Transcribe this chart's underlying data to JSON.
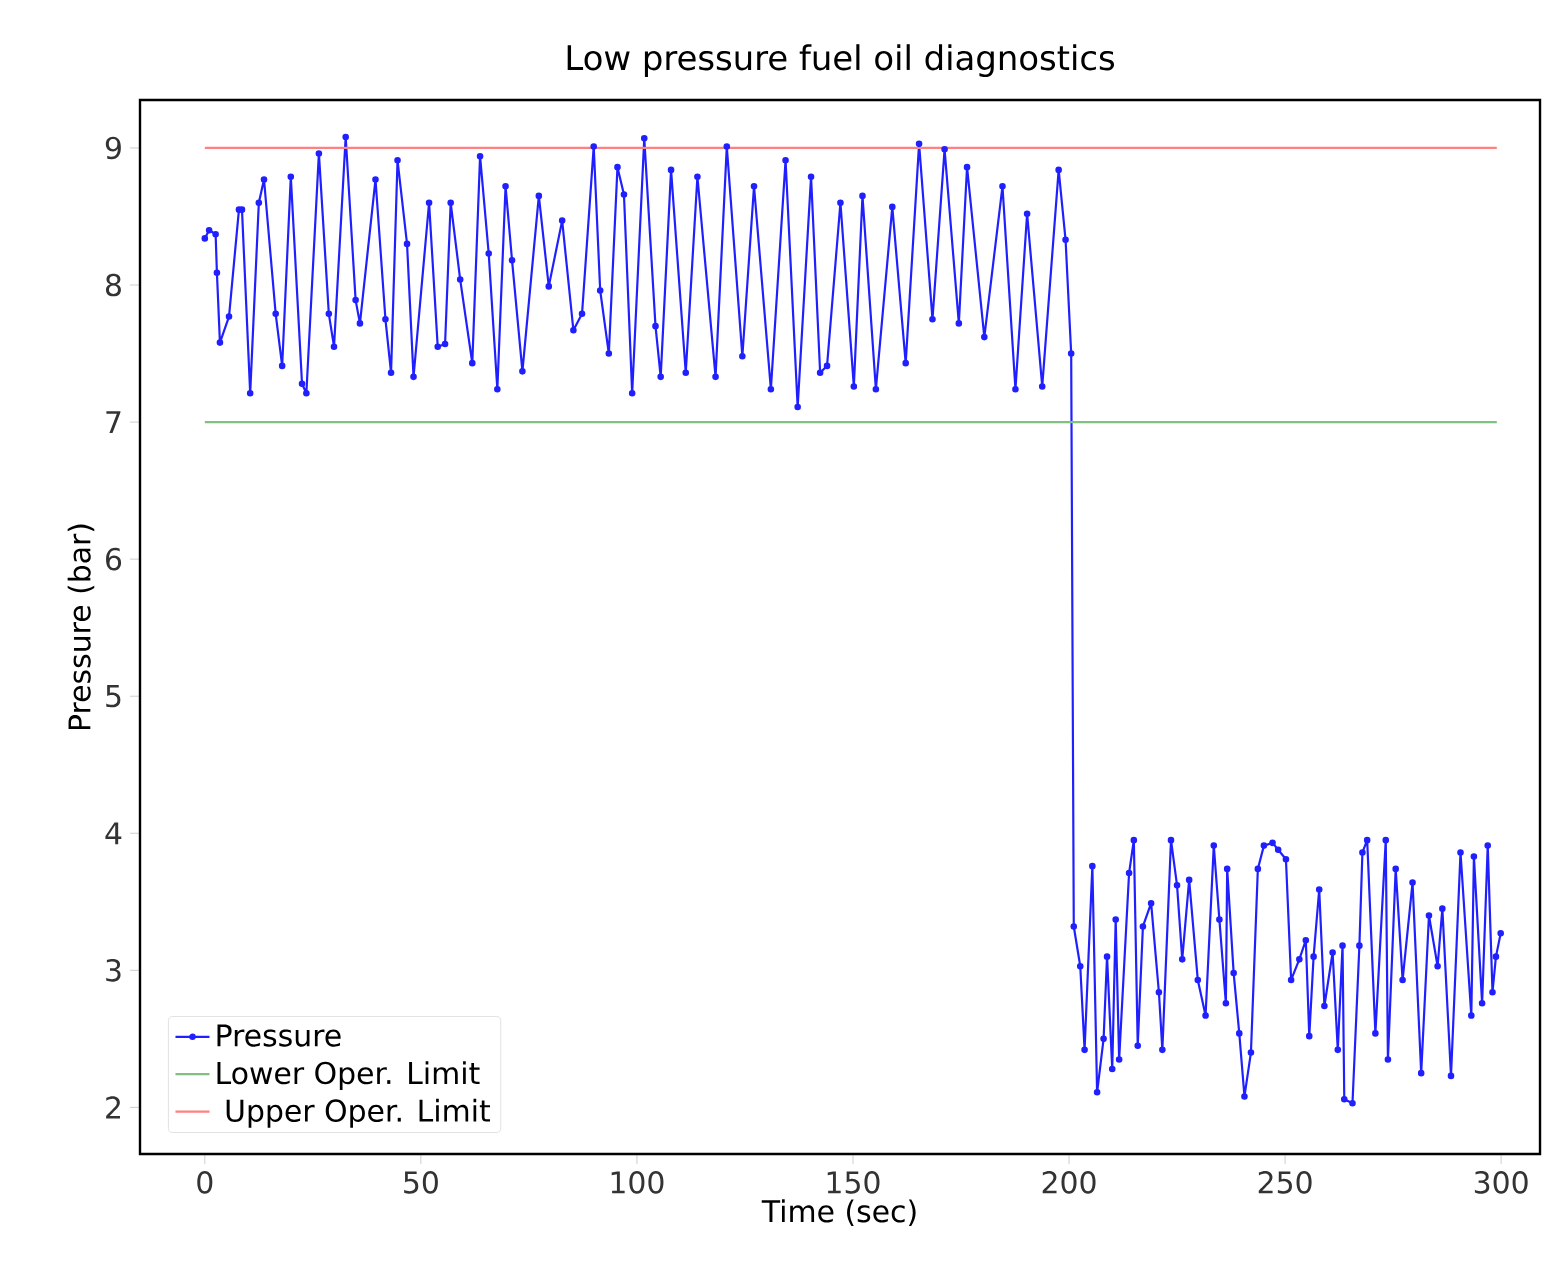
{
  "chart_data": {
    "type": "line",
    "title": "Low pressure fuel oil diagnostics",
    "xlabel": "Time (sec)",
    "ylabel": "Pressure (bar)",
    "xlim": [
      -15,
      309
    ],
    "ylim": [
      1.66,
      9.35
    ],
    "xticks": [
      0,
      50,
      100,
      150,
      200,
      250,
      300
    ],
    "yticks": [
      2,
      3,
      4,
      5,
      6,
      7,
      8,
      9
    ],
    "grid": false,
    "legend": "bottom left",
    "line_style": "solid",
    "series": [
      {
        "name": "Pressure",
        "color": "#2020ff",
        "marker": "circle",
        "x": [
          0,
          1,
          2.5,
          2.8,
          3.5,
          5.6,
          7.9,
          8.6,
          10.5,
          12.5,
          13.7,
          16.4,
          17.9,
          19.9,
          22.5,
          23.5,
          26.4,
          28.7,
          29.9,
          32.6,
          34.9,
          35.9,
          39.5,
          41.8,
          43.1,
          44.6,
          46.8,
          48.3,
          51.9,
          53.9,
          55.6,
          56.9,
          59.1,
          61.9,
          63.7,
          65.7,
          67.7,
          69.6,
          71.1,
          73.5,
          77.3,
          79.6,
          82.7,
          85.3,
          87.3,
          90.0,
          91.5,
          93.5,
          95.5,
          97.0,
          98.9,
          101.7,
          104.3,
          105.5,
          107.9,
          111.3,
          114.0,
          118.2,
          120.8,
          124.4,
          127.1,
          131.0,
          134.4,
          137.2,
          140.3,
          142.4,
          144.0,
          147.1,
          150.2,
          152.2,
          155.3,
          159.1,
          162.2,
          165.3,
          168.4,
          171.2,
          174.5,
          176.4,
          180.4,
          184.6,
          187.6,
          190.3,
          193.8,
          197.6,
          199.2,
          200.5,
          201.1,
          202.6,
          203.6,
          205.4,
          206.5,
          208.0,
          208.8,
          210.0,
          210.8,
          211.6,
          213.9,
          215.0,
          215.9,
          217.1,
          219.0,
          220.8,
          221.6,
          223.6,
          225.0,
          226.2,
          227.8,
          229.8,
          231.6,
          233.5,
          234.8,
          236.3,
          236.6,
          238.1,
          239.4,
          240.6,
          242.1,
          243.7,
          245.1,
          247.1,
          248.4,
          250.2,
          251.4,
          253.3,
          254.8,
          255.6,
          256.6,
          257.9,
          259.1,
          261.0,
          262.2,
          263.3,
          263.7,
          265.6,
          267.2,
          267.9,
          269.0,
          270.9,
          273.3,
          273.8,
          275.6,
          277.2,
          279.5,
          281.5,
          283.3,
          285.3,
          286.4,
          288.4,
          290.6,
          293.1,
          293.7,
          295.6,
          296.9,
          298.0,
          298.8,
          299.9
        ],
        "values": [
          8.34,
          8.4,
          8.37,
          8.09,
          7.58,
          7.77,
          8.55,
          8.55,
          7.21,
          8.6,
          8.77,
          7.79,
          7.41,
          8.79,
          7.28,
          7.21,
          8.96,
          7.79,
          7.55,
          9.08,
          7.89,
          7.72,
          8.77,
          7.75,
          7.36,
          8.91,
          8.3,
          7.33,
          8.6,
          7.55,
          7.57,
          8.6,
          8.04,
          7.43,
          8.94,
          8.23,
          7.24,
          8.72,
          8.18,
          7.37,
          8.65,
          7.99,
          8.47,
          7.67,
          7.79,
          9.01,
          7.96,
          7.5,
          8.86,
          8.66,
          7.21,
          9.07,
          7.7,
          7.33,
          8.84,
          7.36,
          8.79,
          7.33,
          9.01,
          7.48,
          8.72,
          7.24,
          8.91,
          7.11,
          8.79,
          7.36,
          7.41,
          8.6,
          7.26,
          8.65,
          7.24,
          8.57,
          7.43,
          9.03,
          7.75,
          8.99,
          7.72,
          8.86,
          7.62,
          8.72,
          7.24,
          8.52,
          7.26,
          8.84,
          8.33,
          7.5,
          3.32,
          3.03,
          2.42,
          3.76,
          2.11,
          2.5,
          3.1,
          2.28,
          3.37,
          2.35,
          3.71,
          3.95,
          2.45,
          3.32,
          3.49,
          2.84,
          2.42,
          3.95,
          3.62,
          3.08,
          3.66,
          2.93,
          2.67,
          3.91,
          3.37,
          2.76,
          3.74,
          2.98,
          2.54,
          2.08,
          2.4,
          3.74,
          3.91,
          3.93,
          3.88,
          3.81,
          2.93,
          3.08,
          3.22,
          2.52,
          3.1,
          3.59,
          2.74,
          3.13,
          2.42,
          3.18,
          2.06,
          2.03,
          3.18,
          3.86,
          3.95,
          2.54,
          3.95,
          2.35,
          3.74,
          2.93,
          3.64,
          2.25,
          3.4,
          3.03,
          3.45,
          2.23,
          3.86,
          2.67,
          3.83,
          2.76,
          3.91,
          2.84,
          3.1,
          3.27
        ]
      },
      {
        "name": "Lower Oper. Limit",
        "color": "#80c080",
        "x": [
          0,
          299
        ],
        "values": [
          7,
          7
        ]
      },
      {
        "name": " Upper Oper. Limit",
        "color": "#ff8080",
        "x": [
          0,
          299
        ],
        "values": [
          9,
          9
        ]
      }
    ]
  }
}
